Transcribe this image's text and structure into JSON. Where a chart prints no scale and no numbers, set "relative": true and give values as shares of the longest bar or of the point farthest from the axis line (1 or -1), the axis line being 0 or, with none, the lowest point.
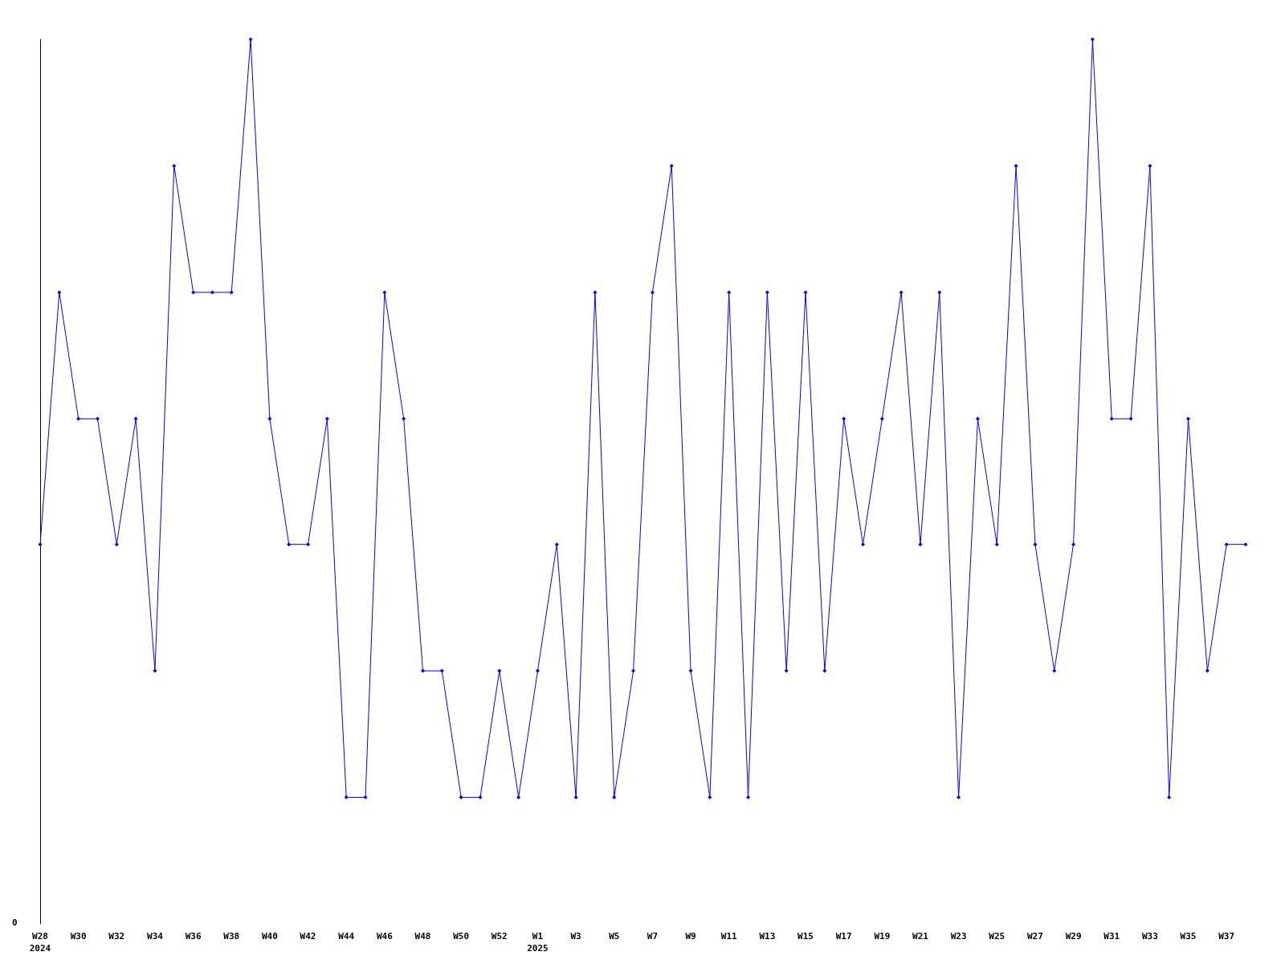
{
  "chart_data": {
    "type": "line",
    "relative": true,
    "marker": "diamond",
    "line_style": "solid",
    "categories": [
      "W28\n2024",
      null,
      "W30",
      null,
      "W32",
      null,
      "W34",
      null,
      "W36",
      null,
      "W38",
      null,
      "W40",
      null,
      "W42",
      null,
      "W44",
      null,
      "W46",
      null,
      "W48",
      null,
      "W50",
      null,
      "W52",
      null,
      "W1\n2025",
      null,
      "W3",
      null,
      "W5",
      null,
      "W7",
      null,
      "W9",
      null,
      "W11",
      null,
      "W13",
      null,
      "W15",
      null,
      "W17",
      null,
      "W19",
      null,
      "W21",
      null,
      "W23",
      null,
      "W25",
      null,
      "W27",
      null,
      "W29",
      null,
      "W31",
      null,
      "W33",
      null,
      "W35",
      null,
      "W37",
      null
    ],
    "series": [
      {
        "color": "#0000ff",
        "values": [
          0.429,
          0.714,
          0.571,
          0.571,
          0.429,
          0.571,
          0.286,
          0.857,
          0.714,
          0.714,
          0.714,
          1,
          0.571,
          0.429,
          0.429,
          0.571,
          0.143,
          0.143,
          0.714,
          0.571,
          0.286,
          0.286,
          0.143,
          0.143,
          0.286,
          0.143,
          0.286,
          0.429,
          0.143,
          0.714,
          0.143,
          0.286,
          0.714,
          0.857,
          0.286,
          0.143,
          0.714,
          0.143,
          0.714,
          0.286,
          0.714,
          0.286,
          0.571,
          0.429,
          0.571,
          0.714,
          0.429,
          0.714,
          0.143,
          0.571,
          0.429,
          0.857,
          0.429,
          0.286,
          0.429,
          1,
          0.571,
          0.571,
          0.857,
          0.143,
          0.571,
          0.286,
          0.429,
          0.429
        ]
      }
    ],
    "annotations": [
      "0"
    ]
  }
}
